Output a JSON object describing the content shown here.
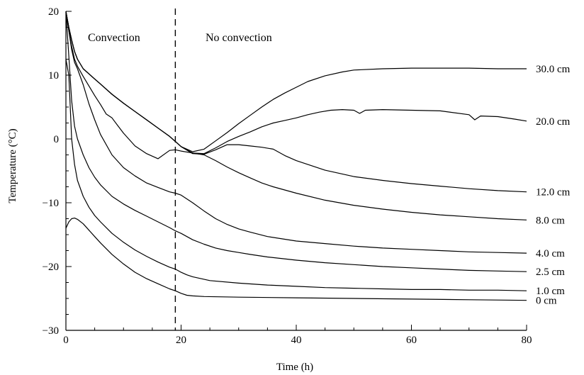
{
  "chart_data": {
    "type": "line",
    "title": "",
    "xlabel": "Time (h)",
    "ylabel": "Temperature (°C)",
    "xlim": [
      0,
      80
    ],
    "ylim": [
      -30,
      20
    ],
    "xticks": [
      "0",
      "20",
      "40",
      "60",
      "80"
    ],
    "yticks": [
      "20",
      "10",
      "0",
      "−10",
      "−20",
      "−30"
    ],
    "grid": false,
    "legend": "inline labels at right end of each curve",
    "annotations": {
      "left_region": "Convection",
      "right_region": "No convection",
      "divider_x": 19
    },
    "series": [
      {
        "name": "30.0 cm",
        "x": [
          0,
          0.5,
          1,
          1.5,
          2,
          3,
          4,
          5,
          6,
          8,
          10,
          12,
          14,
          16,
          18,
          19,
          20,
          22,
          24,
          26,
          28,
          30,
          32,
          34,
          36,
          38,
          40,
          42,
          45,
          48,
          50,
          55,
          60,
          65,
          70,
          75,
          80
        ],
        "y": [
          20,
          17.5,
          15.5,
          13.7,
          12.5,
          11,
          10.2,
          9.4,
          8.6,
          7,
          5.6,
          4.3,
          3,
          1.7,
          0.4,
          -0.4,
          -1.2,
          -2,
          -1.6,
          -0.3,
          1,
          2.4,
          3.7,
          5,
          6.2,
          7.2,
          8.1,
          9,
          9.9,
          10.5,
          10.8,
          11,
          11.1,
          11.1,
          11.1,
          11,
          11
        ]
      },
      {
        "name": "20.0 cm",
        "x": [
          0,
          0.5,
          1,
          1.5,
          2,
          3,
          4,
          5,
          6,
          8,
          10,
          12,
          14,
          16,
          18,
          19,
          20,
          22,
          24,
          26,
          28,
          30,
          32,
          34,
          36,
          38,
          40,
          42,
          44,
          46,
          48,
          50,
          51,
          52,
          55,
          60,
          65,
          70,
          71,
          72,
          75,
          78,
          80
        ],
        "y": [
          20,
          17.5,
          15.5,
          13.7,
          12.5,
          11,
          10.2,
          9.4,
          8.6,
          7,
          5.6,
          4.3,
          3,
          1.7,
          0.4,
          -0.4,
          -1.2,
          -2.2,
          -2.3,
          -1.4,
          -0.4,
          0.4,
          1.1,
          1.9,
          2.5,
          2.9,
          3.3,
          3.8,
          4.2,
          4.5,
          4.6,
          4.5,
          4,
          4.5,
          4.6,
          4.5,
          4.4,
          3.8,
          3,
          3.6,
          3.5,
          3.1,
          2.8
        ]
      },
      {
        "name": "12.0 cm",
        "x": [
          0,
          0.5,
          1,
          1.5,
          2,
          3,
          4,
          5,
          6,
          8,
          10,
          12,
          14,
          16,
          18,
          19,
          20,
          22,
          24,
          26,
          28,
          30,
          32,
          34,
          36,
          38,
          40,
          45,
          50,
          55,
          60,
          65,
          70,
          75,
          80
        ],
        "y": [
          20,
          17.5,
          15.5,
          13.7,
          12.5,
          11,
          10.2,
          9.4,
          8.6,
          7,
          5.6,
          4.3,
          3,
          1.7,
          0.4,
          -0.4,
          -1.2,
          -2.3,
          -2.4,
          -1.7,
          -0.9,
          -0.9,
          -1.1,
          -1.3,
          -1.6,
          -2.6,
          -3.4,
          -4.9,
          -5.9,
          -6.5,
          -7,
          -7.4,
          -7.8,
          -8.1,
          -8.3
        ]
      },
      {
        "name": "8.0 cm",
        "x": [
          0,
          0.5,
          1,
          1.5,
          2,
          3,
          4,
          5,
          6,
          7,
          8,
          9,
          10,
          12,
          14,
          16,
          18,
          19,
          20,
          22,
          24,
          26,
          28,
          30,
          32,
          34,
          36,
          40,
          45,
          50,
          55,
          60,
          65,
          70,
          75,
          80
        ],
        "y": [
          20,
          17,
          14.5,
          12.5,
          11.4,
          9.8,
          8.3,
          6.8,
          5.4,
          3.9,
          3.3,
          2.1,
          0.9,
          -1.1,
          -2.3,
          -3.1,
          -1.8,
          -1.7,
          -1.9,
          -2.2,
          -2.5,
          -3.4,
          -4.4,
          -5.3,
          -6.1,
          -6.9,
          -7.5,
          -8.5,
          -9.6,
          -10.4,
          -11,
          -11.5,
          -11.9,
          -12.2,
          -12.5,
          -12.7
        ]
      },
      {
        "name": "4.0 cm",
        "x": [
          0,
          0.5,
          1,
          1.5,
          2,
          3,
          4,
          5,
          6,
          8,
          10,
          12,
          14,
          16,
          18,
          19,
          20,
          22,
          24,
          26,
          28,
          30,
          32,
          35,
          40,
          45,
          50,
          55,
          60,
          65,
          70,
          75,
          80
        ],
        "y": [
          20,
          17,
          14,
          12,
          11,
          8.5,
          5.5,
          3,
          0.7,
          -2.5,
          -4.5,
          -5.8,
          -6.9,
          -7.6,
          -8.3,
          -8.5,
          -8.8,
          -10,
          -11.3,
          -12.5,
          -13.4,
          -14.1,
          -14.6,
          -15.3,
          -16,
          -16.4,
          -16.8,
          -17.1,
          -17.3,
          -17.5,
          -17.7,
          -17.8,
          -17.9
        ]
      },
      {
        "name": "2.5 cm",
        "x": [
          0,
          0.5,
          1,
          1.5,
          2,
          3,
          4,
          5,
          6,
          8,
          10,
          12,
          14,
          16,
          18,
          19,
          20,
          22,
          24,
          26,
          28,
          30,
          32,
          35,
          40,
          45,
          50,
          55,
          60,
          65,
          70,
          75,
          80
        ],
        "y": [
          20,
          13,
          6,
          2,
          0,
          -2.5,
          -4.5,
          -6,
          -7.2,
          -9,
          -10.2,
          -11.2,
          -12.1,
          -13,
          -13.9,
          -14.4,
          -14.8,
          -15.8,
          -16.5,
          -17.1,
          -17.5,
          -17.8,
          -18.1,
          -18.5,
          -19,
          -19.4,
          -19.7,
          -20,
          -20.2,
          -20.4,
          -20.6,
          -20.7,
          -20.8
        ]
      },
      {
        "name": "1.0 cm",
        "x": [
          0,
          0.5,
          1,
          1.5,
          2,
          3,
          4,
          5,
          6,
          8,
          10,
          12,
          14,
          16,
          18,
          19,
          20,
          21,
          22,
          25,
          30,
          35,
          40,
          45,
          50,
          55,
          60,
          65,
          70,
          75,
          80
        ],
        "y": [
          12.5,
          10,
          0,
          -4,
          -6.5,
          -9,
          -10.7,
          -12,
          -13,
          -14.8,
          -16.2,
          -17.4,
          -18.4,
          -19.3,
          -20.1,
          -20.4,
          -20.9,
          -21.3,
          -21.6,
          -22.2,
          -22.6,
          -22.9,
          -23.1,
          -23.3,
          -23.4,
          -23.5,
          -23.6,
          -23.6,
          -23.7,
          -23.7,
          -23.8
        ]
      },
      {
        "name": "0 cm",
        "x": [
          0,
          0.5,
          1,
          1.5,
          2,
          3,
          4,
          5,
          6,
          8,
          10,
          12,
          14,
          16,
          18,
          19,
          20,
          21,
          22,
          24,
          30,
          40,
          50,
          60,
          70,
          80
        ],
        "y": [
          -14,
          -13,
          -12.5,
          -12.4,
          -12.6,
          -13.3,
          -14.3,
          -15.3,
          -16.3,
          -18.1,
          -19.6,
          -20.9,
          -21.9,
          -22.7,
          -23.5,
          -23.8,
          -24.2,
          -24.5,
          -24.6,
          -24.7,
          -24.8,
          -24.9,
          -25,
          -25.1,
          -25.2,
          -25.3
        ]
      }
    ]
  }
}
